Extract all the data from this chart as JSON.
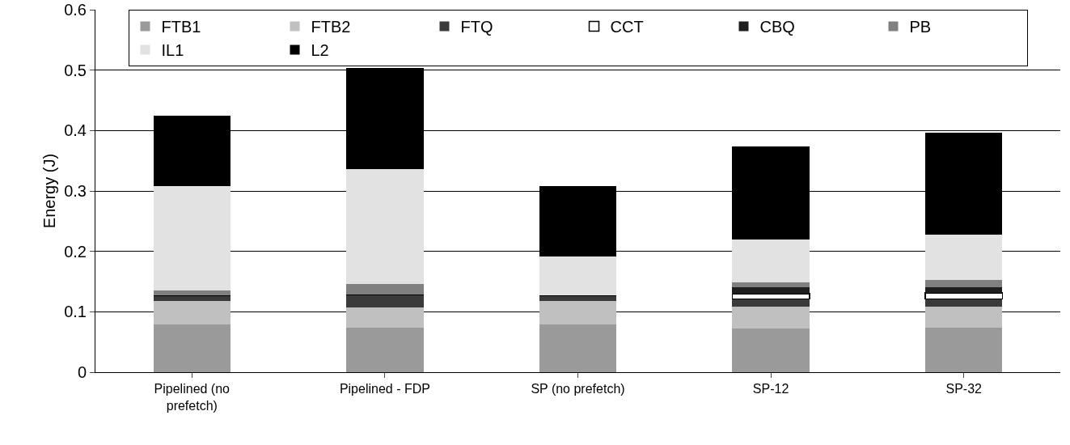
{
  "chart_data": {
    "type": "bar",
    "stacked": true,
    "ylabel": "Energy (J)",
    "categories": [
      "Pipelined (no prefetch)",
      "Pipelined - FDP",
      "SP (no prefetch)",
      "SP-12",
      "SP-32"
    ],
    "series": [
      {
        "name": "FTB1",
        "color": "#9a9a9a",
        "values": [
          0.079,
          0.073,
          0.079,
          0.072,
          0.073
        ]
      },
      {
        "name": "FTB2",
        "color": "#c0c0c0",
        "values": [
          0.039,
          0.034,
          0.039,
          0.037,
          0.036
        ]
      },
      {
        "name": "FTQ",
        "color": "#3a3a3a",
        "values": [
          0.009,
          0.021,
          0.009,
          0.012,
          0.012
        ]
      },
      {
        "name": "CCT",
        "color": "#ffffff",
        "values": [
          0,
          0,
          0,
          0.009,
          0.01
        ]
      },
      {
        "name": "CBQ",
        "color": "#1e1e1e",
        "values": [
          0,
          0,
          0,
          0.01,
          0.01
        ]
      },
      {
        "name": "PB",
        "color": "#808080",
        "values": [
          0.008,
          0.018,
          0,
          0.009,
          0.012
        ]
      },
      {
        "name": "IL1",
        "color": "#e2e2e2",
        "values": [
          0.173,
          0.19,
          0.064,
          0.07,
          0.075
        ]
      },
      {
        "name": "L2",
        "color": "#000000",
        "values": [
          0.117,
          0.168,
          0.117,
          0.154,
          0.169
        ]
      }
    ],
    "ylim": [
      0,
      0.6
    ],
    "yticks": [
      0,
      0.1,
      0.2,
      0.3,
      0.4,
      0.5,
      0.6
    ],
    "grid": "y",
    "legend": "top"
  }
}
